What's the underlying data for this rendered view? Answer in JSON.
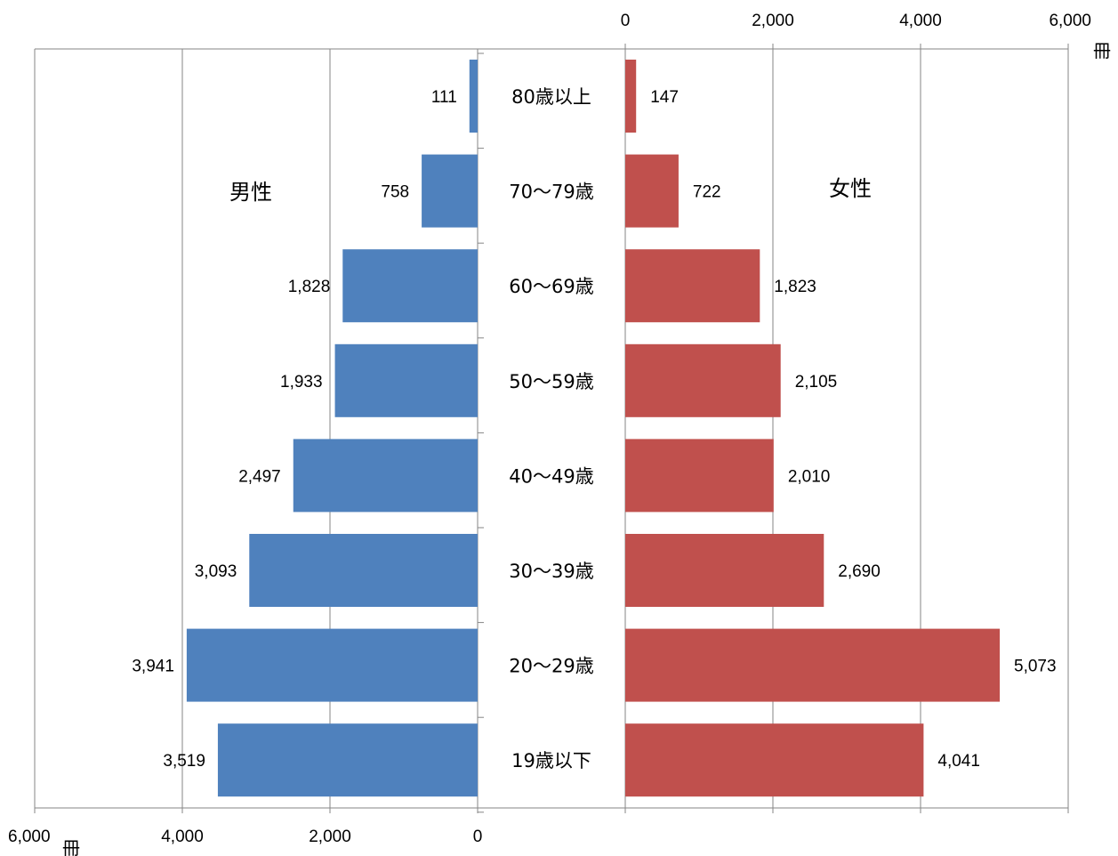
{
  "chart_data": {
    "type": "bar",
    "categories": [
      "80歳以上",
      "70〜79歳",
      "60〜69歳",
      "50〜59歳",
      "40〜49歳",
      "30〜39歳",
      "20〜29歳",
      "19歳以下"
    ],
    "series": [
      {
        "name": "男性",
        "values": [
          111,
          758,
          1828,
          1933,
          2497,
          3093,
          3941,
          3519
        ],
        "labels": [
          "111",
          "758",
          "1,828",
          "1,933",
          "2,497",
          "3,093",
          "3,941",
          "3,519"
        ],
        "color": "#4F81BD",
        "axis": "bottom",
        "direction": "left"
      },
      {
        "name": "女性",
        "values": [
          147,
          722,
          1823,
          2105,
          2010,
          2690,
          5073,
          4041
        ],
        "labels": [
          "147",
          "722",
          "1,823",
          "2,105",
          "2,010",
          "2,690",
          "5,073",
          "4,041"
        ],
        "color": "#C0504D",
        "axis": "top",
        "direction": "right"
      }
    ],
    "left_axis": {
      "ticks": [
        6000,
        4000,
        2000,
        0
      ],
      "tick_labels": [
        "6,000",
        "4,000",
        "2,000",
        "0"
      ],
      "unit": "冊",
      "range": [
        0,
        6000
      ],
      "reversed": true
    },
    "right_axis": {
      "ticks": [
        0,
        2000,
        4000,
        6000
      ],
      "tick_labels": [
        "0",
        "2,000",
        "4,000",
        "6,000"
      ],
      "unit": "冊",
      "range": [
        0,
        6000
      ]
    },
    "grid": true,
    "gridline_color": "#868686"
  }
}
